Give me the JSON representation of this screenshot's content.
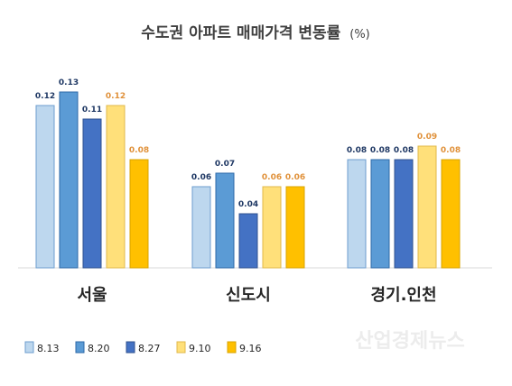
{
  "chart_data": {
    "type": "bar",
    "title": "수도권 아파트 매매가격 변동률",
    "title_unit": "(%)",
    "categories": [
      "서울",
      "신도시",
      "경기.인천"
    ],
    "series": [
      {
        "name": "8.13",
        "values": [
          0.12,
          0.06,
          0.08
        ],
        "color": "#bdd7ee",
        "stroke": "#6d9ecf"
      },
      {
        "name": "8.20",
        "values": [
          0.13,
          0.07,
          0.08
        ],
        "color": "#5b9bd5",
        "stroke": "#2e6aa8"
      },
      {
        "name": "8.27",
        "values": [
          0.11,
          0.04,
          0.08
        ],
        "color": "#4472c4",
        "stroke": "#2f528f"
      },
      {
        "name": "9.10",
        "values": [
          0.12,
          0.06,
          0.09
        ],
        "color": "#ffe07a",
        "stroke": "#e0b84a"
      },
      {
        "name": "9.16",
        "values": [
          0.08,
          0.06,
          0.08
        ],
        "color": "#ffc000",
        "stroke": "#d9a300"
      }
    ],
    "value_labels": [
      [
        "0.12",
        "0.06",
        "0.08"
      ],
      [
        "0.13",
        "0.07",
        "0.08"
      ],
      [
        "0.11",
        "0.04",
        "0.08"
      ],
      [
        "0.12",
        "0.06",
        "0.09"
      ],
      [
        "0.08",
        "0.06",
        "0.08"
      ]
    ],
    "label_colors": {
      "blue": "#1f3864",
      "orange": "#e0913a"
    },
    "ylim": [
      0,
      0.14
    ],
    "grid": false,
    "legend_position": "bottom-left"
  },
  "watermark": "산업경제뉴스"
}
